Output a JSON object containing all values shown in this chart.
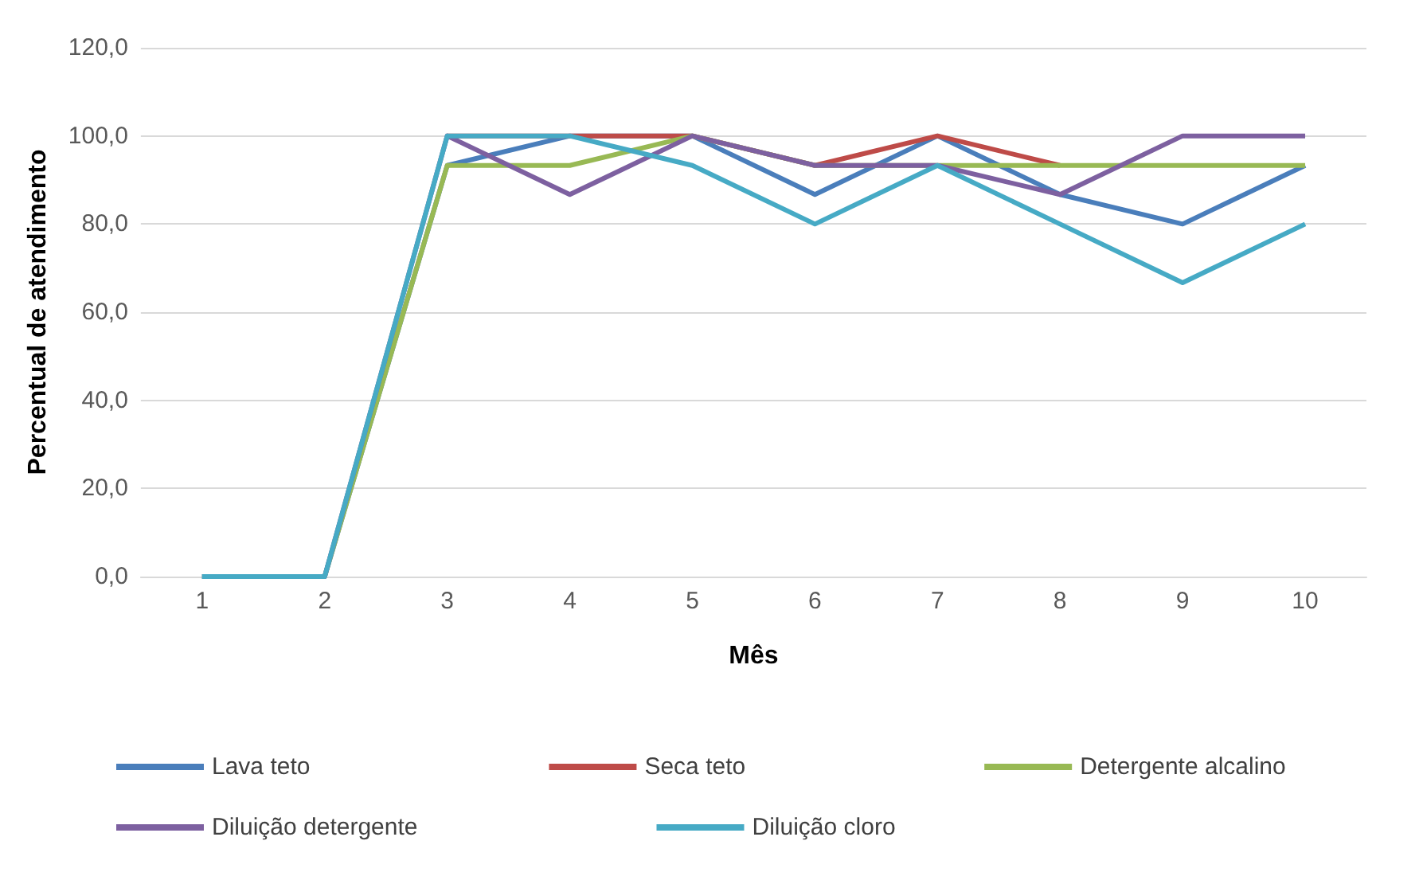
{
  "chart_data": {
    "type": "line",
    "xlabel": "Mês",
    "ylabel": "Percentual de atendimento",
    "categories": [
      "1",
      "2",
      "3",
      "4",
      "5",
      "6",
      "7",
      "8",
      "9",
      "10"
    ],
    "series": [
      {
        "name": "Lava teto",
        "color": "#4a7ebb",
        "values": [
          0,
          0,
          93.3,
          100,
          100,
          86.7,
          100,
          86.7,
          80,
          93.3
        ]
      },
      {
        "name": "Seca teto",
        "color": "#be4b48",
        "values": [
          null,
          null,
          100,
          100,
          100,
          93.3,
          100,
          93.3,
          null,
          null
        ]
      },
      {
        "name": "Detergente alcalino",
        "color": "#98b954",
        "values": [
          0,
          0,
          93.3,
          93.3,
          100,
          93.3,
          93.3,
          93.3,
          93.3,
          93.3
        ]
      },
      {
        "name": "Diluição detergente",
        "color": "#7d60a0",
        "values": [
          0,
          0,
          100,
          86.7,
          100,
          93.3,
          93.3,
          86.7,
          100,
          100
        ]
      },
      {
        "name": "Diluição cloro",
        "color": "#46aac5",
        "values": [
          0,
          0,
          100,
          100,
          93.3,
          80,
          93.3,
          80,
          66.7,
          80
        ]
      }
    ],
    "ylim": [
      0,
      120
    ],
    "yticks": [
      {
        "value": 0,
        "label": "0,0"
      },
      {
        "value": 20,
        "label": "20,0"
      },
      {
        "value": 40,
        "label": "40,0"
      },
      {
        "value": 60,
        "label": "60,0"
      },
      {
        "value": 80,
        "label": "80,0"
      },
      {
        "value": 100,
        "label": "100,0"
      },
      {
        "value": 120,
        "label": "120,0"
      }
    ],
    "grid": "y",
    "legend": "bottom",
    "marker": "none",
    "line_style": "solid"
  }
}
